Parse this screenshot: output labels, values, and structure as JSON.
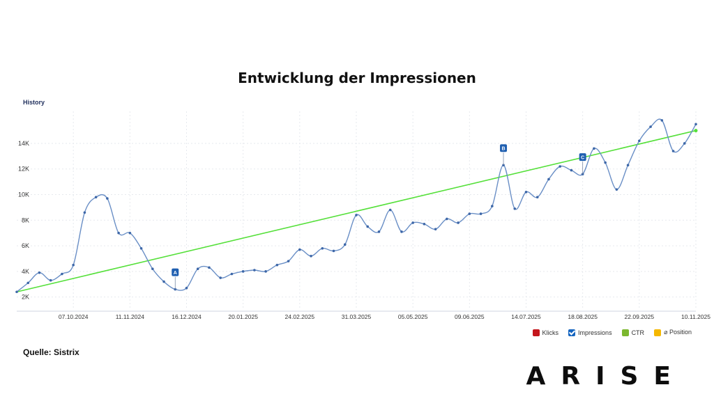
{
  "title": "Entwicklung der Impressionen",
  "section_label": "History",
  "source": "Quelle: Sistrix",
  "logo": "ARISE",
  "legend": [
    {
      "label": "Klicks",
      "color": "#c4161c",
      "checked": false
    },
    {
      "label": "Impressions",
      "color": "#1565c0",
      "checked": true
    },
    {
      "label": "CTR",
      "color": "#7cb82f",
      "checked": false
    },
    {
      "label": "⌀ Position",
      "color": "#f5b800",
      "checked": false
    }
  ],
  "chart_data": {
    "type": "line",
    "xlabel": "",
    "ylabel": "",
    "x_tick_labels": [
      "07.10.2024",
      "11.11.2024",
      "16.12.2024",
      "20.01.2025",
      "24.02.2025",
      "31.03.2025",
      "05.05.2025",
      "09.06.2025",
      "14.07.2025",
      "18.08.2025",
      "22.09.2025",
      "10.11.2025"
    ],
    "y_tick_labels": [
      "2K",
      "4K",
      "6K",
      "8K",
      "10K",
      "12K",
      "14K"
    ],
    "ylim": [
      1000,
      16500
    ],
    "x_range": [
      0,
      60
    ],
    "grid": true,
    "legend": "bottom-right",
    "series": [
      {
        "name": "Impressions",
        "color": "#6a8fc6",
        "x": [
          0,
          1,
          2,
          3,
          4,
          5,
          6,
          7,
          8,
          9,
          10,
          11,
          12,
          13,
          14,
          15,
          16,
          17,
          18,
          19,
          20,
          21,
          22,
          23,
          24,
          25,
          26,
          27,
          28,
          29,
          30,
          31,
          32,
          33,
          34,
          35,
          36,
          37,
          38,
          39,
          40,
          41,
          42,
          43,
          44,
          45,
          46,
          47,
          48,
          49,
          50,
          51,
          52,
          53,
          54,
          55,
          56,
          57,
          58,
          59,
          60
        ],
        "y": [
          2400,
          3100,
          3900,
          3300,
          3800,
          4500,
          8600,
          9800,
          9700,
          7000,
          7000,
          5800,
          4200,
          3200,
          2600,
          2700,
          4200,
          4300,
          3500,
          3800,
          4000,
          4100,
          4000,
          4500,
          4800,
          5700,
          5200,
          5800,
          5600,
          6100,
          8400,
          7500,
          7100,
          8800,
          7100,
          7800,
          7700,
          7300,
          8100,
          7800,
          8500,
          8500,
          9100,
          12300,
          8900,
          10200,
          9800,
          11200,
          12200,
          11900,
          11600,
          13600,
          12500,
          10400,
          12300,
          14200,
          15300,
          15800,
          13400,
          14000,
          15500
        ]
      },
      {
        "name": "",
        "color": "#55e03a",
        "x": [
          0,
          60
        ],
        "y": [
          2400,
          15000
        ]
      }
    ],
    "annotations": [
      {
        "label": "A",
        "x": 14
      },
      {
        "label": "B",
        "x": 43
      },
      {
        "label": "C",
        "x": 50
      }
    ]
  }
}
